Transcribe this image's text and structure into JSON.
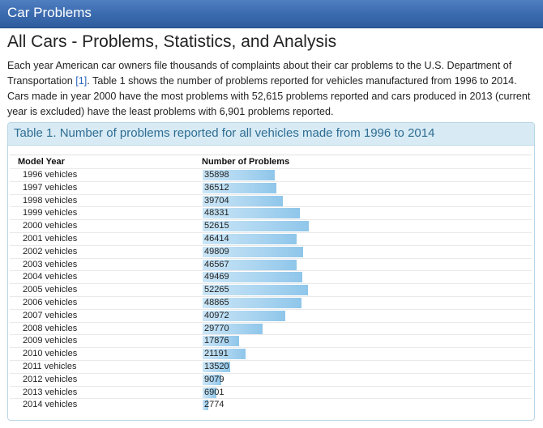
{
  "header": {
    "brand": "Car Problems"
  },
  "page": {
    "title": "All Cars - Problems, Statistics, and Analysis",
    "intro_part1": "Each year American car owners file thousands of complaints about their car problems to the U.S. Department of Transportation ",
    "intro_ref": "[1]",
    "intro_part2": ". Table 1 shows the number of problems reported for vehicles manufactured from 1996 to 2014. Cars made in year 2000 have the most problems with 52,615 problems reported and cars produced in 2013 (current year is excluded) have the least problems with 6,901 problems reported."
  },
  "panel": {
    "title": "Table 1. Number of problems reported for all vehicles made from 1996 to 2014"
  },
  "colors": {
    "header_bar": "#3a6aae",
    "panel_header": "#d8ebf5",
    "bar_fill": "#a9d4f0",
    "link": "#2a66c0"
  },
  "chart_data": {
    "type": "bar",
    "orientation": "horizontal",
    "title": "Table 1. Number of problems reported for all vehicles made from 1996 to 2014",
    "xlabel": "Number of Problems",
    "ylabel": "Model Year",
    "categories": [
      "1996 vehicles",
      "1997 vehicles",
      "1998 vehicles",
      "1999 vehicles",
      "2000 vehicles",
      "2001 vehicles",
      "2002 vehicles",
      "2003 vehicles",
      "2004 vehicles",
      "2005 vehicles",
      "2006 vehicles",
      "2007 vehicles",
      "2008 vehicles",
      "2009 vehicles",
      "2010 vehicles",
      "2011 vehicles",
      "2012 vehicles",
      "2013 vehicles",
      "2014 vehicles"
    ],
    "values": [
      35898,
      36512,
      39704,
      48331,
      52615,
      46414,
      49809,
      46567,
      49469,
      52265,
      48865,
      40972,
      29770,
      17876,
      21191,
      13520,
      9079,
      6901,
      2774
    ],
    "grid": false,
    "legend": "none"
  }
}
